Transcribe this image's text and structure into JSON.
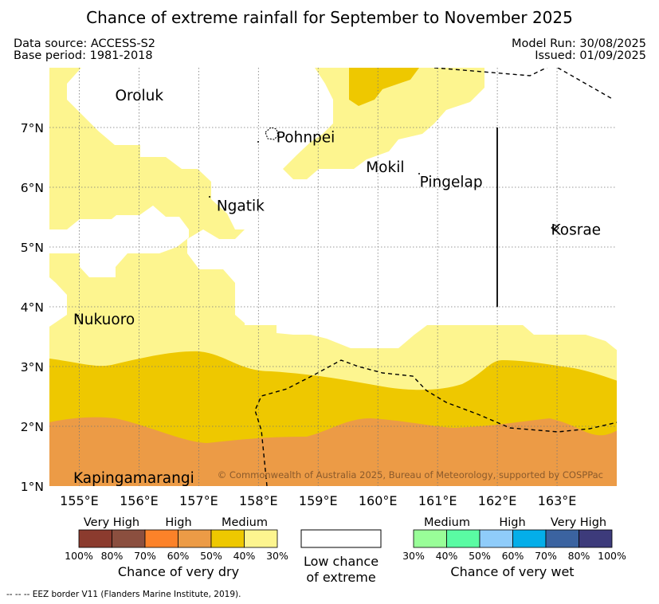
{
  "title": "Chance of extreme rainfall for September to November 2025",
  "meta": {
    "data_source": "Data source: ACCESS-S2",
    "base_period": "Base period: 1981-2018",
    "model_run": "Model Run: 30/08/2025",
    "issued": "Issued: 01/09/2025"
  },
  "map": {
    "lon_range": [
      154.5,
      164.0
    ],
    "lat_range": [
      1.0,
      8.0
    ],
    "x_ticks": [
      "155°E",
      "156°E",
      "157°E",
      "158°E",
      "159°E",
      "160°E",
      "161°E",
      "162°E",
      "163°E"
    ],
    "y_ticks": [
      "1°N",
      "2°N",
      "3°N",
      "4°N",
      "5°N",
      "6°N",
      "7°N"
    ],
    "islands": [
      {
        "name": "Oroluk",
        "lon": 155.6,
        "lat": 7.55
      },
      {
        "name": "Pohnpei",
        "lon": 158.3,
        "lat": 6.85
      },
      {
        "name": "Mokil",
        "lon": 159.8,
        "lat": 6.35
      },
      {
        "name": "Pingelap",
        "lon": 160.7,
        "lat": 6.1
      },
      {
        "name": "Ngatik",
        "lon": 157.3,
        "lat": 5.7
      },
      {
        "name": "Kosrae",
        "lon": 162.9,
        "lat": 5.3
      },
      {
        "name": "Nukuoro",
        "lon": 154.9,
        "lat": 3.8
      },
      {
        "name": "Kapingamarangi",
        "lon": 154.9,
        "lat": 1.15
      }
    ],
    "zone_colors": {
      "medium_dry": "#fdf58f",
      "high_dry": "#eec800",
      "high_dry_70": "#ec9b46"
    },
    "copyright": "© Commonwealth of Australia 2025, Bureau of Meteorology, supported by COSPPac"
  },
  "legend": {
    "dry": {
      "headings": [
        "Very High",
        "High",
        "Medium"
      ],
      "colors": [
        "#8b3b2e",
        "#8b4f3f",
        "#fc8229",
        "#ec9b46",
        "#eec800",
        "#fdf58f"
      ],
      "ticks": [
        "100%",
        "80%",
        "70%",
        "60%",
        "50%",
        "40%",
        "30%"
      ],
      "caption": "Chance of very dry"
    },
    "low": {
      "line1": "Low chance",
      "line2": "of extreme"
    },
    "wet": {
      "headings": [
        "Medium",
        "High",
        "Very High"
      ],
      "colors": [
        "#99fe98",
        "#5afba3",
        "#8fccfa",
        "#04aee9",
        "#3b63a0",
        "#3d3b7b"
      ],
      "ticks": [
        "30%",
        "40%",
        "50%",
        "60%",
        "70%",
        "80%",
        "100%"
      ],
      "caption": "Chance of very wet"
    }
  },
  "footer": "--  --  -- EEZ border V11 (Flanders Marine Institute, 2019)."
}
